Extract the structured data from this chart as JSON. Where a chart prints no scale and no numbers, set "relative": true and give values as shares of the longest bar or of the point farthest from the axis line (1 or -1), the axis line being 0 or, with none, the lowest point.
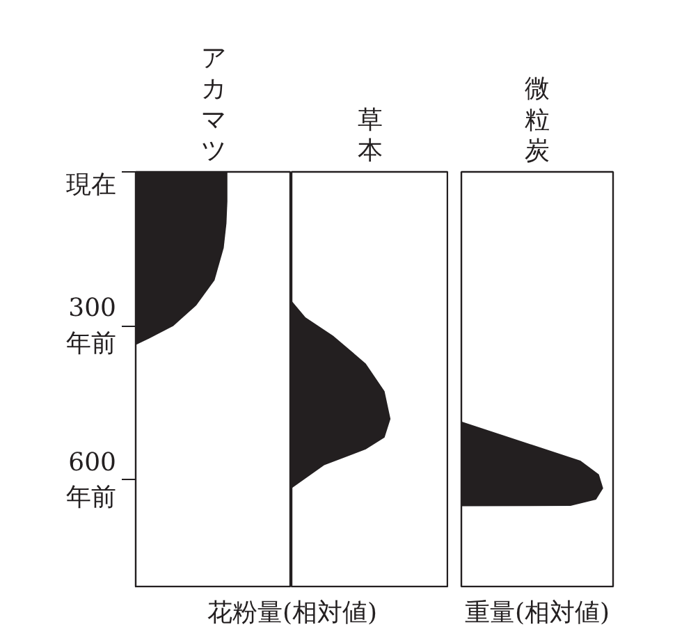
{
  "chart_data": [
    {
      "type": "area",
      "orientation": "horizontal",
      "relative": true,
      "xlabel": "花粉量(相対値)",
      "ylim": [
        810,
        0
      ],
      "yticks": [
        {
          "value": 0,
          "label": "現在"
        },
        {
          "value": 300,
          "label": "300\n年前"
        },
        {
          "value": 600,
          "label": "600\n年前"
        }
      ],
      "tick_labels": "y",
      "series": [
        {
          "name": "アカマツ",
          "color": "#231f20",
          "x": [
            0,
            57,
            100,
            148,
            211,
            260,
            300,
            324,
            337
          ],
          "values": [
            1,
            1,
            0.99,
            0.96,
            0.86,
            0.66,
            0.41,
            0.15,
            0
          ]
        }
      ]
    },
    {
      "type": "area",
      "orientation": "horizontal",
      "relative": true,
      "ylim": [
        810,
        0
      ],
      "tick_labels": false,
      "series": [
        {
          "name": "草本",
          "color": "#231f20",
          "x": [
            251,
            283,
            319,
            373,
            427,
            481,
            517,
            540,
            571,
            616
          ],
          "values": [
            0,
            0.14,
            0.42,
            0.75,
            0.94,
            1,
            0.94,
            0.75,
            0.33,
            0
          ]
        }
      ]
    },
    {
      "type": "area",
      "orientation": "horizontal",
      "relative": true,
      "xlabel": "重量(相対値)",
      "ylim": [
        810,
        0
      ],
      "tick_labels": false,
      "series": [
        {
          "name": "微粒炭",
          "color": "#231f20",
          "x": [
            486,
            562,
            589,
            616,
            638,
            650,
            651
          ],
          "values": [
            0,
            0.84,
            0.97,
            1,
            0.95,
            0.77,
            0
          ]
        }
      ]
    }
  ]
}
